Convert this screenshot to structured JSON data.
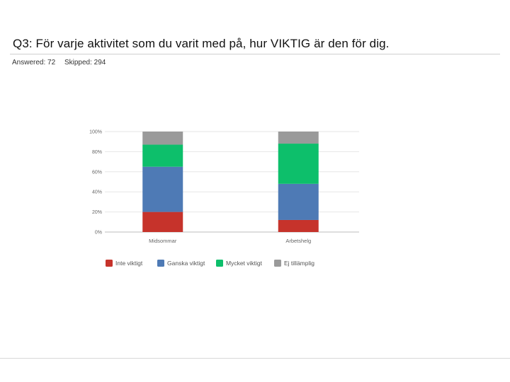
{
  "header": {
    "title": "Q3: För varje aktivitet som du varit med på, hur VIKTIG är den för dig.",
    "answered": "Answered: 72",
    "skipped": "Skipped: 294"
  },
  "chart_data": {
    "type": "bar",
    "stacked": true,
    "title": "",
    "xlabel": "",
    "ylabel": "",
    "ylim": [
      0,
      100
    ],
    "yticks": [
      0,
      20,
      40,
      60,
      80,
      100
    ],
    "ytick_labels": [
      "0%",
      "20%",
      "40%",
      "60%",
      "80%",
      "100%"
    ],
    "categories": [
      "Midsommar",
      "Arbetshelg"
    ],
    "series": [
      {
        "name": "Inte viktigt",
        "color": "#c6332b",
        "values": [
          20,
          12
        ]
      },
      {
        "name": "Ganska viktigt",
        "color": "#4e7ab5",
        "values": [
          45,
          36
        ]
      },
      {
        "name": "Mycket viktigt",
        "color": "#0dbf6b",
        "values": [
          22,
          40
        ]
      },
      {
        "name": "Ej tillämplig",
        "color": "#9a9a9a",
        "values": [
          13,
          12
        ]
      }
    ],
    "grid": true,
    "legend_position": "bottom"
  }
}
